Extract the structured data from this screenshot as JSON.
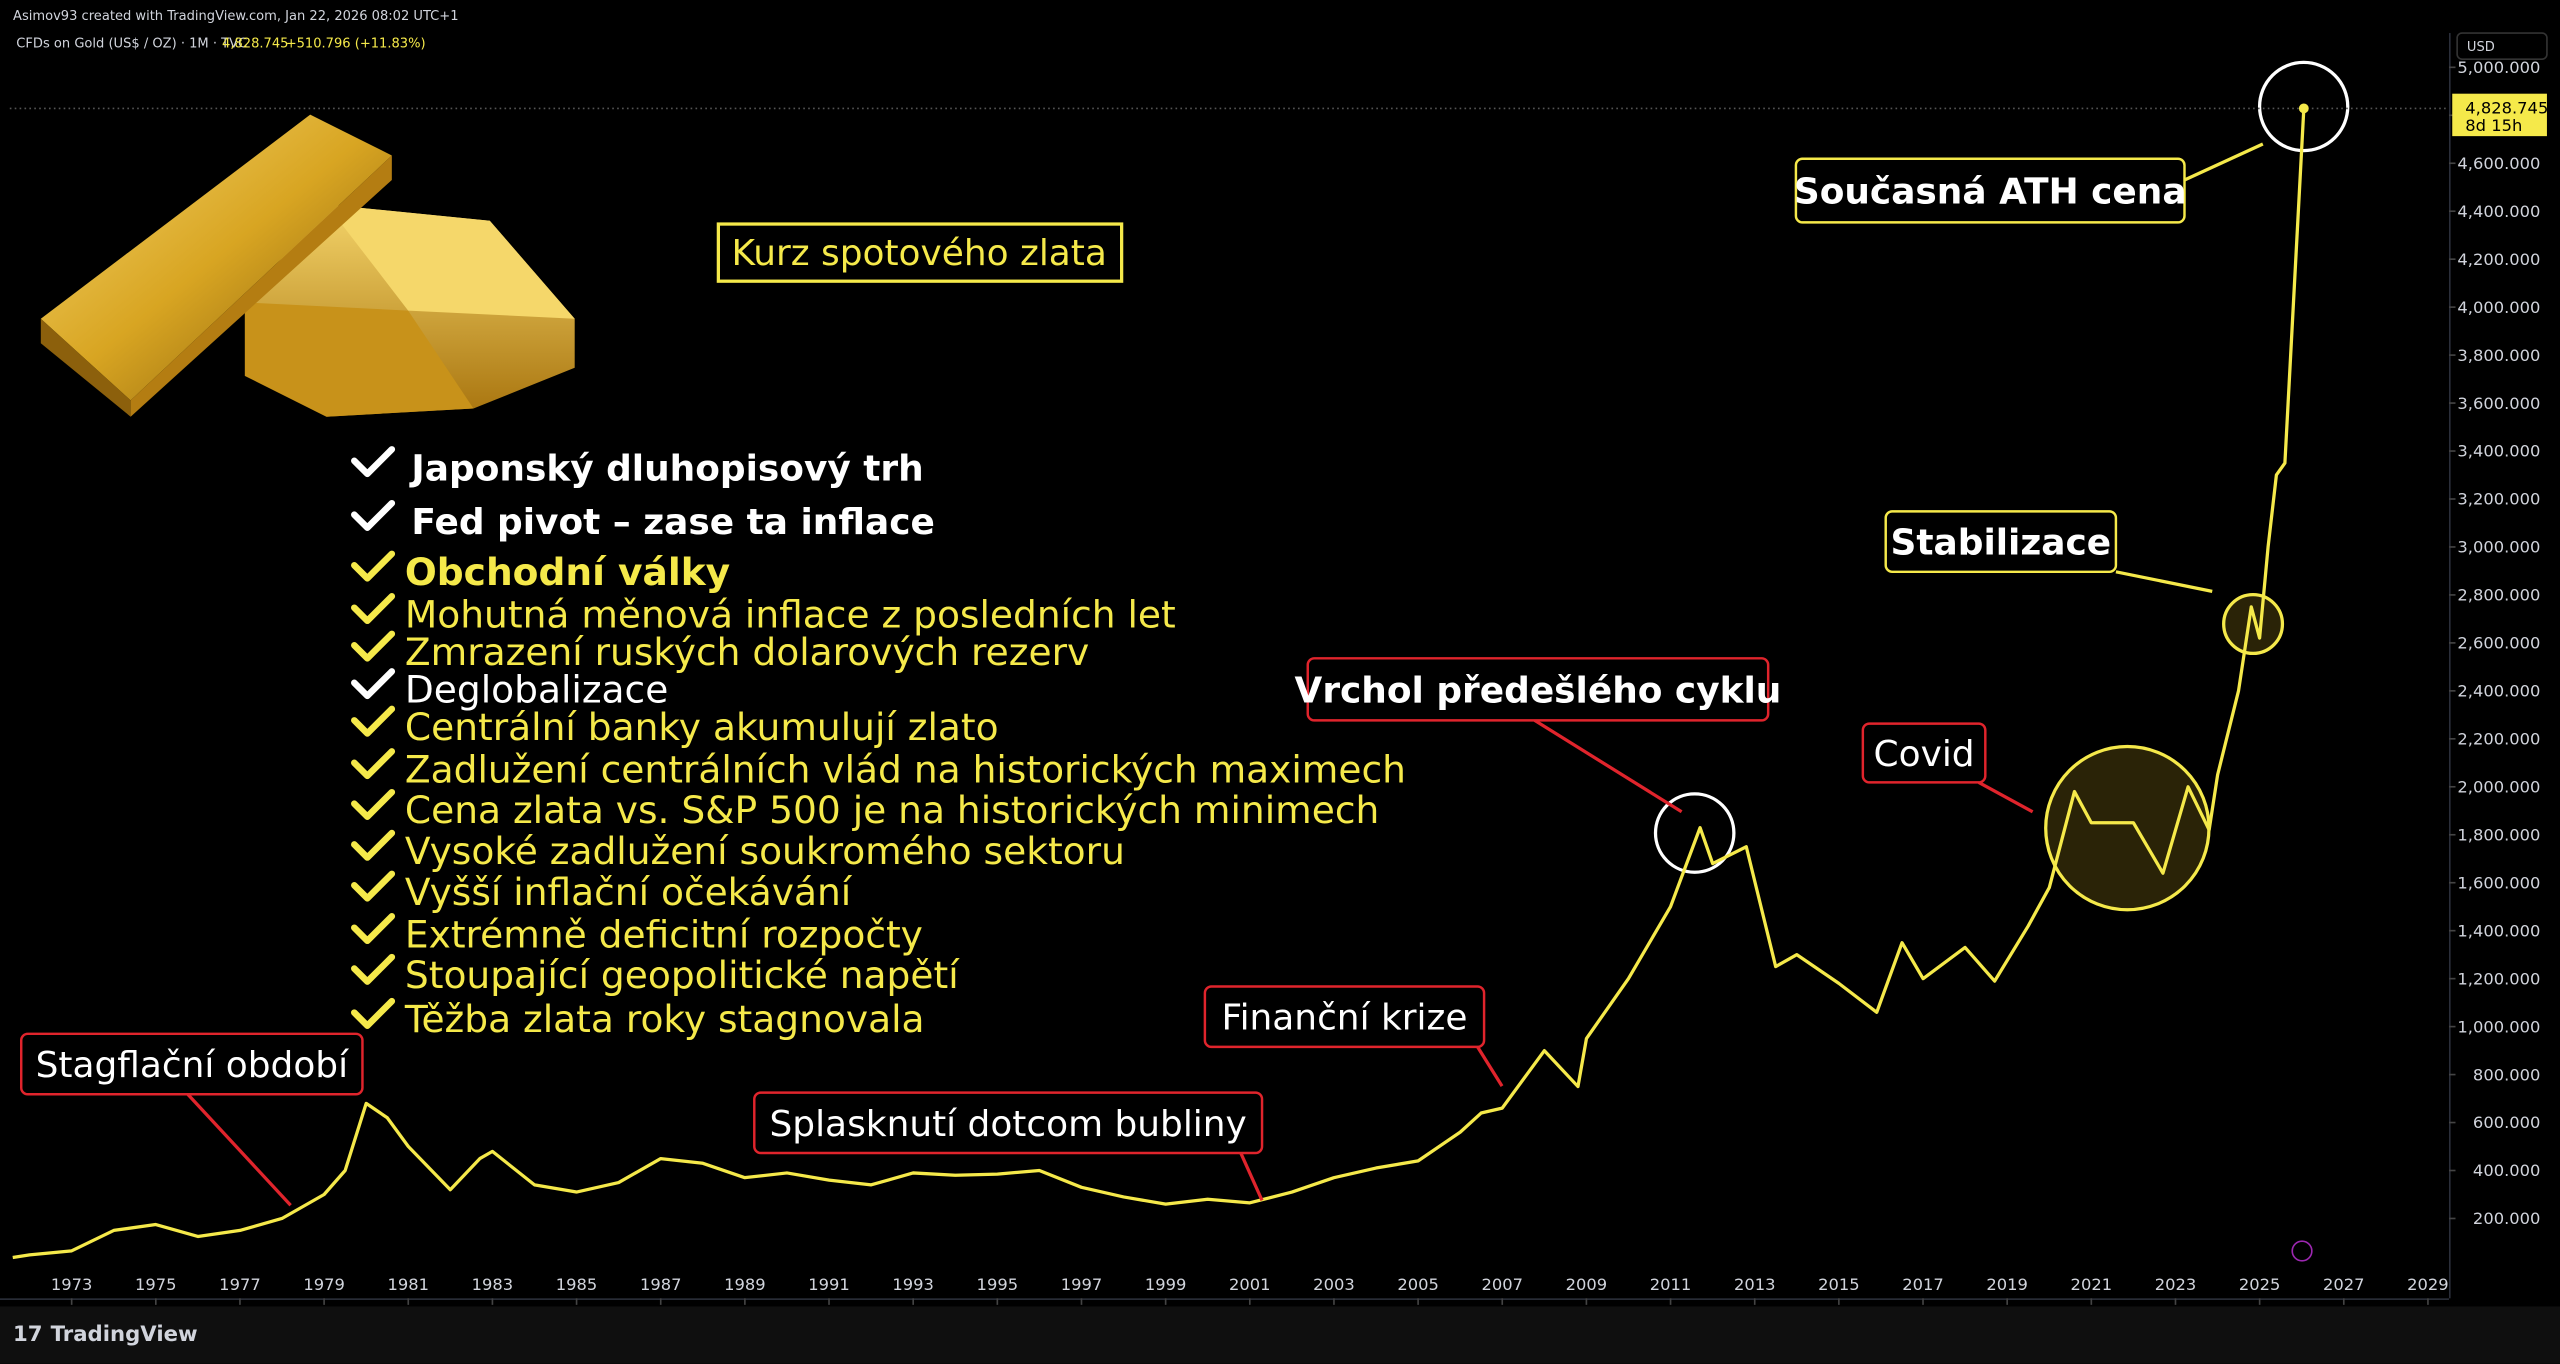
{
  "header": {
    "credit": "Asimov93 created with TradingView.com, Jan 22, 2026 08:02 UTC+1",
    "symbol": "CFDs on Gold (US$ / OZ) · 1M · TVC",
    "price": "4,828.745",
    "change": "+510.796 (+11.83%)"
  },
  "chart_data": {
    "type": "line",
    "title": "Kurz spotového zlata",
    "color": "#f5e94a",
    "x": [
      1971.6,
      1972,
      1973,
      1974,
      1975,
      1976,
      1977,
      1978,
      1979,
      1979.5,
      1980,
      1980.5,
      1981,
      1982,
      1982.7,
      1983,
      1984,
      1985,
      1986,
      1987,
      1988,
      1989,
      1990,
      1991,
      1992,
      1993,
      1994,
      1995,
      1996,
      1997,
      1998,
      1999,
      2000,
      2001,
      2002,
      2003,
      2004,
      2005,
      2006,
      2006.5,
      2007,
      2008,
      2008.8,
      2009,
      2010,
      2011,
      2011.7,
      2012,
      2012.8,
      2013.5,
      2014,
      2015,
      2015.9,
      2016.5,
      2017,
      2018,
      2018.7,
      2019.5,
      2020,
      2020.6,
      2021,
      2022,
      2022.7,
      2023.3,
      2023.8,
      2024,
      2024.5,
      2024.8,
      2025,
      2025.2,
      2025.4,
      2025.6,
      2025.8,
      2026.05
    ],
    "values": [
      37,
      48,
      65,
      150,
      175,
      125,
      150,
      200,
      300,
      400,
      680,
      620,
      500,
      320,
      450,
      480,
      340,
      310,
      350,
      450,
      430,
      370,
      390,
      360,
      340,
      390,
      380,
      385,
      400,
      330,
      290,
      260,
      280,
      265,
      310,
      370,
      410,
      440,
      560,
      640,
      660,
      900,
      750,
      950,
      1200,
      1500,
      1830,
      1680,
      1750,
      1250,
      1300,
      1180,
      1060,
      1350,
      1200,
      1330,
      1190,
      1420,
      1580,
      1980,
      1850,
      1850,
      1640,
      2000,
      1820,
      2050,
      2400,
      2750,
      2620,
      3000,
      3300,
      3350,
      4000,
      4828.745
    ],
    "xlim": [
      1971.53,
      2029.5
    ],
    "ylim": [
      -133,
      5143
    ],
    "xticks": [
      1973,
      1975,
      1977,
      1979,
      1981,
      1983,
      1985,
      1987,
      1989,
      1991,
      1993,
      1995,
      1997,
      1999,
      2001,
      2003,
      2005,
      2007,
      2009,
      2011,
      2013,
      2015,
      2017,
      2019,
      2021,
      2023,
      2025,
      2027,
      2029
    ],
    "yticks": [
      {
        "value": 200,
        "label": "200.000"
      },
      {
        "value": 400,
        "label": "400.000"
      },
      {
        "value": 600,
        "label": "600.000"
      },
      {
        "value": 800,
        "label": "800.000"
      },
      {
        "value": 1000,
        "label": "1,000.000"
      },
      {
        "value": 1200,
        "label": "1,200.000"
      },
      {
        "value": 1400,
        "label": "1,400.000"
      },
      {
        "value": 1600,
        "label": "1,600.000"
      },
      {
        "value": 1800,
        "label": "1,800.000"
      },
      {
        "value": 2000,
        "label": "2,000.000"
      },
      {
        "value": 2200,
        "label": "2,200.000"
      },
      {
        "value": 2400,
        "label": "2,400.000"
      },
      {
        "value": 2600,
        "label": "2,600.000"
      },
      {
        "value": 2800,
        "label": "2,800.000"
      },
      {
        "value": 3000,
        "label": "3,000.000"
      },
      {
        "value": 3200,
        "label": "3,200.000"
      },
      {
        "value": 3400,
        "label": "3,400.000"
      },
      {
        "value": 3600,
        "label": "3,600.000"
      },
      {
        "value": 3800,
        "label": "3,800.000"
      },
      {
        "value": 4000,
        "label": "4,000.000"
      },
      {
        "value": 4200,
        "label": "4,200.000"
      },
      {
        "value": 4400,
        "label": "4,400.000"
      },
      {
        "value": 4600,
        "label": "4,600.000"
      },
      {
        "value": 4800,
        "label": "4,800.000"
      },
      {
        "value": 5000,
        "label": "5,000.000"
      }
    ],
    "grid": false,
    "currency": "USD",
    "price_label": "4,828.745",
    "countdown": "8d 15h",
    "annotations": [
      {
        "text": "Stagflační období",
        "border": "#e0242c"
      },
      {
        "text": "Splasknutí dotcom bubliny",
        "border": "#e0242c"
      },
      {
        "text": "Finanční krize",
        "border": "#e0242c"
      },
      {
        "text": "Vrchol předešlého cyklu",
        "border": "#e0242c"
      },
      {
        "text": "Covid",
        "border": "#e0242c"
      },
      {
        "text": "Stabilizace",
        "border": "#f5e94a"
      },
      {
        "text": "Současná ATH cena",
        "border": "#f5e94a"
      }
    ],
    "checklist": [
      {
        "text": "Japonský dluhopisový trh",
        "color": "#ffffff",
        "bold": true
      },
      {
        "text": "Fed pivot – zase ta inflace",
        "color": "#ffffff",
        "bold": true
      },
      {
        "text": "Obchodní války",
        "color": "#f5e94a",
        "bold": true
      },
      {
        "text": "Mohutná měnová inflace z posledních let",
        "color": "#f5e94a",
        "bold": false
      },
      {
        "text": "Zmrazení ruských dolarových rezerv",
        "color": "#f5e94a",
        "bold": false
      },
      {
        "text": "Deglobalizace",
        "color": "#ffffff",
        "bold": false
      },
      {
        "text": "Centrální banky akumulují zlato",
        "color": "#f5e94a",
        "bold": false
      },
      {
        "text": "Zadlužení centrálních vlád na historických maximech",
        "color": "#f5e94a",
        "bold": false
      },
      {
        "text": "Cena zlata vs. S&P 500 je na historických minimech",
        "color": "#f5e94a",
        "bold": false
      },
      {
        "text": "Vysoké zadlužení soukromého sektoru",
        "color": "#f5e94a",
        "bold": false
      },
      {
        "text": "Vyšší inflační očekávání",
        "color": "#f5e94a",
        "bold": false
      },
      {
        "text": "Extrémně deficitní rozpočty",
        "color": "#f5e94a",
        "bold": false
      },
      {
        "text": "Stoupající geopolitické napětí",
        "color": "#f5e94a",
        "bold": false
      },
      {
        "text": "Těžba zlata roky stagnovala",
        "color": "#f5e94a",
        "bold": false
      }
    ]
  },
  "footer": {
    "brand": "TradingView"
  }
}
